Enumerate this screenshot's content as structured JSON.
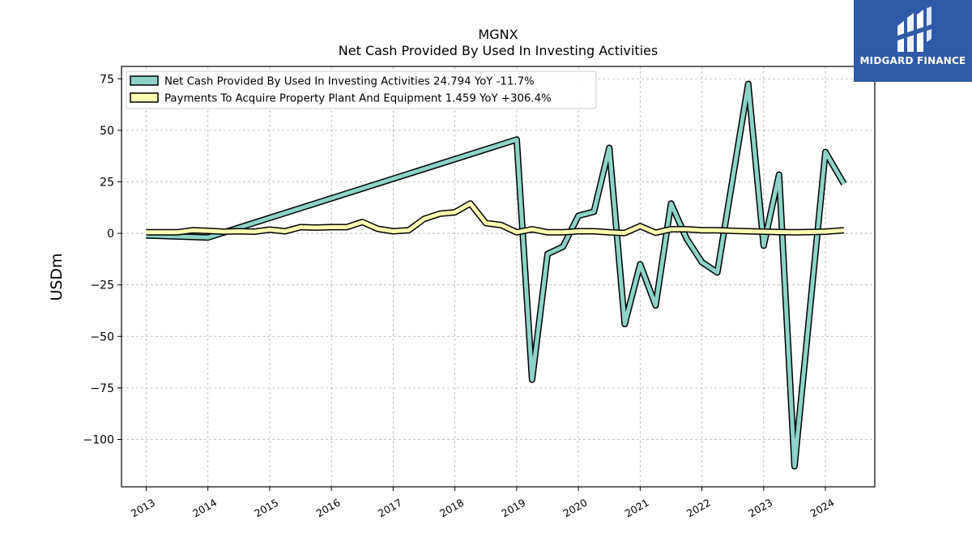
{
  "chart_data": {
    "type": "line",
    "title": "MGNX",
    "subtitle": "Net Cash Provided By Used In Investing Activities",
    "ylabel": "USDm",
    "xlabel": "",
    "xlim": [
      2012.6,
      2024.8
    ],
    "ylim": [
      -123,
      81
    ],
    "yticks": [
      75,
      50,
      25,
      0,
      -25,
      -50,
      -75,
      -100
    ],
    "ytick_labels": [
      "75",
      "50",
      "25",
      "0",
      "−25",
      "−50",
      "−75",
      "−100"
    ],
    "xticks": [
      2013,
      2014,
      2015,
      2016,
      2017,
      2018,
      2019,
      2020,
      2021,
      2022,
      2023,
      2024
    ],
    "xtick_labels": [
      "2013",
      "2014",
      "2015",
      "2016",
      "2017",
      "2018",
      "2019",
      "2020",
      "2021",
      "2022",
      "2023",
      "2024"
    ],
    "grid": true,
    "legend_position": "top-left",
    "series": [
      {
        "name": "Net Cash Provided By Used In Investing Activities  24.794 YoY -11.7%",
        "color": "#8dd3c7",
        "x": [
          2013.0,
          2014.0,
          2019.0,
          2019.25,
          2019.5,
          2019.75,
          2020.0,
          2020.25,
          2020.5,
          2020.75,
          2021.0,
          2021.25,
          2021.5,
          2021.75,
          2022.0,
          2022.25,
          2022.75,
          2023.0,
          2023.25,
          2023.5,
          2024.0,
          2024.3
        ],
        "y": [
          -1,
          -2,
          45.5,
          -71,
          -10,
          -6.5,
          8.5,
          10.5,
          41.5,
          -44,
          -15,
          -35,
          14.5,
          -2.5,
          -14,
          -19,
          72.5,
          -6,
          28.5,
          -113,
          39.5,
          24
        ]
      },
      {
        "name": "Payments To Acquire Property Plant And Equipment  1.459 YoY +306.4%",
        "color": "#ffffb3",
        "x": [
          2013.0,
          2013.25,
          2013.5,
          2013.75,
          2014.0,
          2014.25,
          2014.5,
          2014.75,
          2015.0,
          2015.25,
          2015.5,
          2015.75,
          2016.0,
          2016.25,
          2016.5,
          2016.75,
          2017.0,
          2017.25,
          2017.5,
          2017.75,
          2018.0,
          2018.25,
          2018.5,
          2018.75,
          2019.0,
          2019.25,
          2019.5,
          2019.75,
          2020.0,
          2020.25,
          2020.5,
          2020.75,
          2021.0,
          2021.25,
          2021.5,
          2021.75,
          2022.0,
          2022.25,
          2022.5,
          2022.75,
          2023.0,
          2023.25,
          2023.5,
          2023.75,
          2024.0,
          2024.3
        ],
        "y": [
          0.5,
          0.5,
          0.5,
          1.5,
          1.2,
          0.8,
          1.0,
          0.8,
          1.8,
          1.0,
          3.0,
          2.8,
          3.0,
          3.0,
          5.5,
          2.2,
          1.0,
          1.5,
          7.0,
          9.5,
          10.2,
          14.5,
          5.0,
          4.0,
          0.5,
          2.0,
          0.5,
          0.5,
          1.0,
          1.0,
          0.5,
          0.2,
          3.5,
          0.3,
          2.0,
          2.0,
          1.5,
          1.5,
          1.2,
          1.0,
          0.8,
          0.6,
          0.5,
          0.6,
          0.8,
          1.5
        ]
      }
    ]
  },
  "logo": {
    "text": "MIDGARD FINANCE",
    "background": "#2f5aa8"
  }
}
